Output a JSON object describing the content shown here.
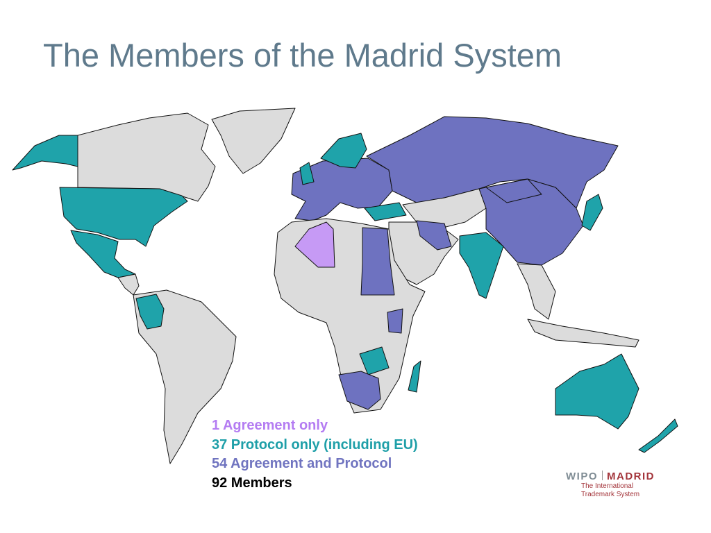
{
  "title": "The Members of the Madrid System",
  "legend": [
    {
      "text": "1 Agreement only",
      "color": "#b47cf2"
    },
    {
      "text": "37 Protocol only (including EU)",
      "color": "#1e9fa8"
    },
    {
      "text": "54 Agreement and Protocol",
      "color": "#7074c0"
    },
    {
      "text": "92 Members",
      "color": "#000000"
    }
  ],
  "logo": {
    "left": "WIPO",
    "right": "MADRID",
    "lines": [
      "The International",
      "Trademark System"
    ]
  }
}
